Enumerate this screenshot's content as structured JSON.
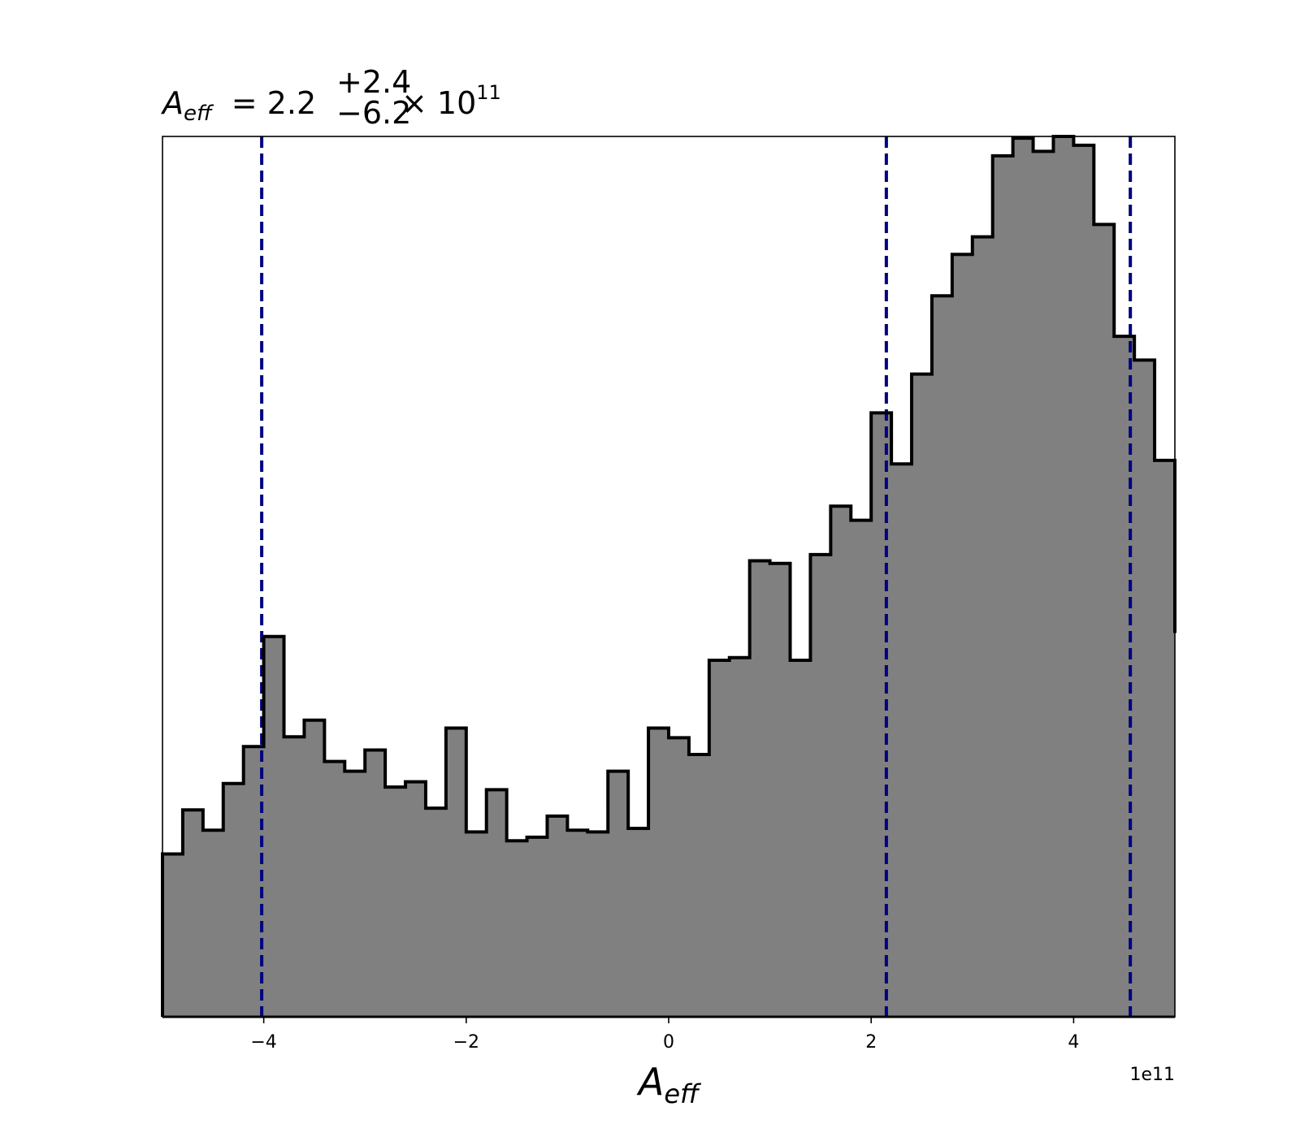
{
  "chart_data": {
    "type": "histogram",
    "title": {
      "symbol": "A",
      "subscript": "eff",
      "equals": "= 2.2",
      "upper": "+2.4",
      "lower": "−6.2",
      "times": "× 10",
      "exponent": "11"
    },
    "xlabel": {
      "symbol": "A",
      "subscript": "eff"
    },
    "x_offset_label": "1e11",
    "xlim": [
      -5.0,
      5.0
    ],
    "ylim": [
      0,
      1.0
    ],
    "xticks": [
      -4,
      -2,
      0,
      2,
      4
    ],
    "xtick_labels": [
      "−4",
      "−2",
      "0",
      "2",
      "4"
    ],
    "bin_edges_start": -5.0,
    "bin_width": 0.2,
    "counts": [
      0.185,
      0.235,
      0.212,
      0.265,
      0.307,
      0.432,
      0.318,
      0.337,
      0.29,
      0.279,
      0.303,
      0.261,
      0.267,
      0.237,
      0.328,
      0.21,
      0.258,
      0.2,
      0.204,
      0.228,
      0.212,
      0.21,
      0.279,
      0.214,
      0.328,
      0.317,
      0.298,
      0.405,
      0.408,
      0.518,
      0.515,
      0.405,
      0.525,
      0.58,
      0.564,
      0.686,
      0.628,
      0.73,
      0.819,
      0.866,
      0.886,
      0.978,
      0.998,
      0.983,
      1.0,
      0.99,
      0.9,
      0.773,
      0.746,
      0.632,
      0.436
    ],
    "vlines": [
      -4.02,
      2.15,
      4.56
    ],
    "colors": {
      "fill": "#808080",
      "edge": "#000000",
      "vline": "#000080"
    },
    "grid": false,
    "yticks_visible": false
  }
}
